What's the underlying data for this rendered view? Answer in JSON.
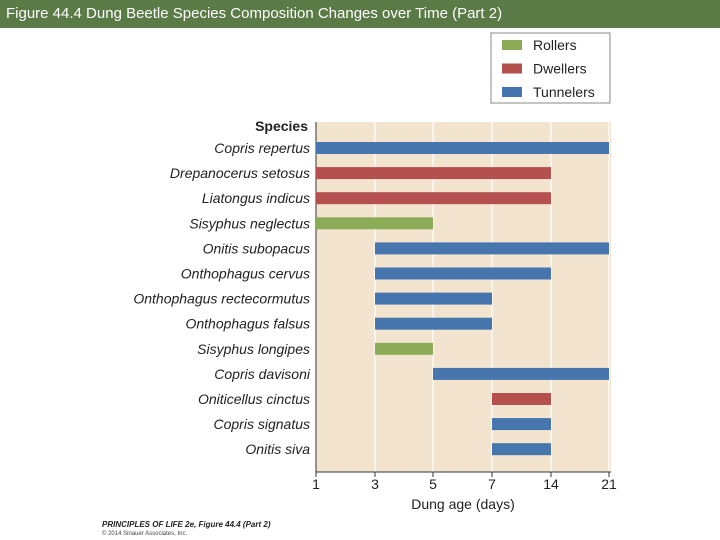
{
  "header": {
    "title": "Figure 44.4  Dung Beetle Species Composition Changes over Time (Part 2)"
  },
  "footer": {
    "credit_line1": "PRINCIPLES OF LIFE 2e, Figure 44.4 (Part 2)",
    "credit_line2": "© 2014 Sinauer Associates, Inc."
  },
  "chart_data": {
    "type": "bar",
    "subtype": "horizontal-range",
    "species_header": "Species",
    "xlabel": "Dung age (days)",
    "x_ticks": [
      "1",
      "3",
      "5",
      "7",
      "14",
      "21"
    ],
    "legend": [
      {
        "name": "Rollers",
        "color": "#8bab57"
      },
      {
        "name": "Dwellers",
        "color": "#b5504e"
      },
      {
        "name": "Tunnelers",
        "color": "#4676ad"
      }
    ],
    "legend_position": "top-right",
    "rows": [
      {
        "species": "Copris repertus",
        "group": "Tunnelers",
        "start": "1",
        "end": "21"
      },
      {
        "species": "Drepanocerus setosus",
        "group": "Dwellers",
        "start": "1",
        "end": "14"
      },
      {
        "species": "Liatongus indicus",
        "group": "Dwellers",
        "start": "1",
        "end": "14"
      },
      {
        "species": "Sisyphus neglectus",
        "group": "Rollers",
        "start": "1",
        "end": "5"
      },
      {
        "species": "Onitis subopacus",
        "group": "Tunnelers",
        "start": "3",
        "end": "21"
      },
      {
        "species": "Onthophagus cervus",
        "group": "Tunnelers",
        "start": "3",
        "end": "14"
      },
      {
        "species": "Onthophagus rectecormutus",
        "group": "Tunnelers",
        "start": "3",
        "end": "7"
      },
      {
        "species": "Onthophagus falsus",
        "group": "Tunnelers",
        "start": "3",
        "end": "7"
      },
      {
        "species": "Sisyphus longipes",
        "group": "Rollers",
        "start": "3",
        "end": "5"
      },
      {
        "species": "Copris davisoni",
        "group": "Tunnelers",
        "start": "5",
        "end": "21"
      },
      {
        "species": "Oniticellus cinctus",
        "group": "Dwellers",
        "start": "7",
        "end": "14"
      },
      {
        "species": "Copris signatus",
        "group": "Tunnelers",
        "start": "7",
        "end": "14"
      },
      {
        "species": "Onitis siva",
        "group": "Tunnelers",
        "start": "7",
        "end": "14"
      }
    ]
  },
  "colors": {
    "title_bar": "#5a7a46",
    "plot_background": "#f3e4cf",
    "gridline": "#ffffff"
  }
}
